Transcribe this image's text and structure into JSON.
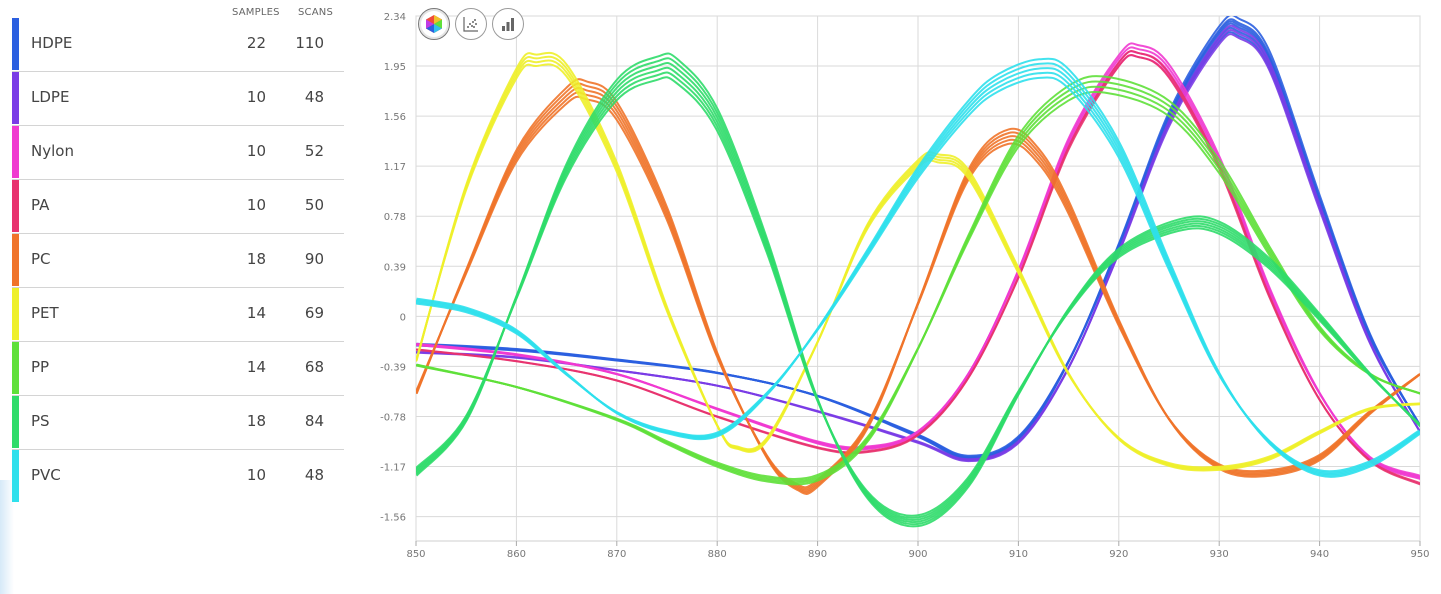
{
  "legend": {
    "headers": {
      "samples": "SAMPLES",
      "scans": "SCANS"
    },
    "rows": [
      {
        "name": "HDPE",
        "samples": "22",
        "scans": "110",
        "color": "#2b5fe0"
      },
      {
        "name": "LDPE",
        "samples": "10",
        "scans": "48",
        "color": "#7a3ce6"
      },
      {
        "name": "Nylon",
        "samples": "10",
        "scans": "52",
        "color": "#f03ad0"
      },
      {
        "name": "PA",
        "samples": "10",
        "scans": "50",
        "color": "#e8326e"
      },
      {
        "name": "PC",
        "samples": "18",
        "scans": "90",
        "color": "#f0742a"
      },
      {
        "name": "PET",
        "samples": "14",
        "scans": "69",
        "color": "#eef02a"
      },
      {
        "name": "PP",
        "samples": "14",
        "scans": "68",
        "color": "#5fe03a"
      },
      {
        "name": "PS",
        "samples": "18",
        "scans": "84",
        "color": "#2fdc6a"
      },
      {
        "name": "PVC",
        "samples": "10",
        "scans": "48",
        "color": "#2fe0ec"
      }
    ]
  },
  "toolbar": {
    "buttons": [
      {
        "name": "spectra-view-button",
        "icon": "hexagon-color-icon",
        "active": true
      },
      {
        "name": "scatter-view-button",
        "icon": "scatter-plot-icon",
        "active": false
      },
      {
        "name": "bar-view-button",
        "icon": "bar-chart-icon",
        "active": false
      }
    ]
  },
  "chart_data": {
    "type": "line",
    "title": "",
    "xlabel": "",
    "ylabel": "",
    "xlim": [
      850,
      950
    ],
    "ylim": [
      -1.75,
      2.34
    ],
    "x_ticks": [
      850,
      860,
      870,
      880,
      890,
      900,
      910,
      920,
      930,
      940,
      950
    ],
    "y_ticks": [
      {
        "value": 2.34,
        "label": "2.34"
      },
      {
        "value": 1.95,
        "label": "1.95"
      },
      {
        "value": 1.56,
        "label": "1.56"
      },
      {
        "value": 1.17,
        "label": "1.17"
      },
      {
        "value": 0.78,
        "label": "0.78"
      },
      {
        "value": 0.39,
        "label": "0.39"
      },
      {
        "value": 0,
        "label": "0"
      },
      {
        "value": -0.39,
        "label": "-0.39"
      },
      {
        "value": -0.78,
        "label": "-0.78"
      },
      {
        "value": -1.17,
        "label": "-1.17"
      },
      {
        "value": -1.56,
        "label": "-1.56"
      }
    ],
    "grid": true,
    "legend": "left",
    "series": [
      {
        "name": "HDPE",
        "color": "#2b5fe0",
        "x": [
          850,
          860,
          870,
          880,
          890,
          900,
          905,
          910,
          915,
          920,
          925,
          930,
          932,
          935,
          940,
          945,
          950
        ],
        "y": [
          -0.22,
          -0.26,
          -0.34,
          -0.44,
          -0.62,
          -0.93,
          -1.1,
          -0.95,
          -0.35,
          0.55,
          1.55,
          2.2,
          2.25,
          2.0,
          0.9,
          -0.15,
          -0.85
        ],
        "offsets": [
          0,
          0.04,
          -0.04,
          0.08,
          -0.08,
          0.02
        ]
      },
      {
        "name": "LDPE",
        "color": "#7a3ce6",
        "x": [
          850,
          860,
          870,
          880,
          890,
          900,
          905,
          910,
          915,
          920,
          925,
          930,
          932,
          935,
          940,
          945,
          950
        ],
        "y": [
          -0.28,
          -0.32,
          -0.42,
          -0.54,
          -0.74,
          -0.98,
          -1.12,
          -0.98,
          -0.4,
          0.5,
          1.5,
          2.15,
          2.2,
          1.95,
          0.85,
          -0.2,
          -0.9
        ],
        "offsets": [
          0,
          0.04,
          -0.04
        ]
      },
      {
        "name": "Nylon",
        "color": "#f03ad0",
        "x": [
          850,
          860,
          870,
          880,
          890,
          895,
          900,
          905,
          910,
          915,
          920,
          922,
          925,
          930,
          935,
          940,
          945,
          950
        ],
        "y": [
          -0.22,
          -0.3,
          -0.45,
          -0.72,
          -0.98,
          -1.02,
          -0.9,
          -0.45,
          0.35,
          1.35,
          1.98,
          2.05,
          1.9,
          1.2,
          0.2,
          -0.6,
          -1.1,
          -1.25
        ],
        "offsets": [
          0,
          0.04,
          -0.04,
          0.08
        ]
      },
      {
        "name": "PA",
        "color": "#e8326e",
        "x": [
          850,
          860,
          870,
          880,
          890,
          895,
          900,
          905,
          910,
          915,
          920,
          922,
          925,
          930,
          935,
          940,
          945,
          950
        ],
        "y": [
          -0.26,
          -0.35,
          -0.5,
          -0.78,
          -1.02,
          -1.05,
          -0.92,
          -0.48,
          0.3,
          1.3,
          1.95,
          2.02,
          1.86,
          1.15,
          0.15,
          -0.65,
          -1.12,
          -1.3
        ],
        "offsets": [
          0,
          0.04
        ]
      },
      {
        "name": "PC",
        "color": "#f0742a",
        "x": [
          850,
          855,
          860,
          865,
          867,
          870,
          875,
          880,
          885,
          888,
          890,
          895,
          900,
          905,
          909,
          912,
          915,
          920,
          925,
          930,
          935,
          940,
          945,
          950
        ],
        "y": [
          -0.6,
          0.35,
          1.25,
          1.72,
          1.76,
          1.6,
          0.8,
          -0.3,
          -1.1,
          -1.33,
          -1.3,
          -0.85,
          0.1,
          1.1,
          1.4,
          1.25,
          0.85,
          -0.05,
          -0.8,
          -1.17,
          -1.22,
          -1.1,
          -0.75,
          -0.45
        ],
        "offsets": [
          0,
          0.05,
          -0.05,
          0.1,
          -0.1
        ]
      },
      {
        "name": "PET",
        "color": "#eef02a",
        "x": [
          850,
          855,
          860,
          862,
          865,
          870,
          875,
          880,
          882,
          885,
          890,
          895,
          900,
          902,
          905,
          910,
          915,
          920,
          925,
          930,
          935,
          940,
          945,
          950
        ],
        "y": [
          -0.35,
          1.0,
          1.88,
          1.98,
          1.9,
          1.15,
          0.05,
          -0.85,
          -1.02,
          -0.95,
          -0.2,
          0.7,
          1.18,
          1.22,
          1.1,
          0.35,
          -0.45,
          -0.95,
          -1.15,
          -1.18,
          -1.1,
          -0.9,
          -0.72,
          -0.68
        ],
        "offsets": [
          0,
          0.04,
          -0.04,
          0.08
        ]
      },
      {
        "name": "PP",
        "color": "#5fe03a",
        "x": [
          850,
          860,
          870,
          875,
          880,
          885,
          890,
          895,
          900,
          905,
          910,
          915,
          919,
          925,
          930,
          935,
          940,
          945,
          950
        ],
        "y": [
          -0.38,
          -0.55,
          -0.8,
          -0.98,
          -1.15,
          -1.26,
          -1.25,
          -0.95,
          -0.25,
          0.6,
          1.35,
          1.72,
          1.78,
          1.6,
          1.15,
          0.5,
          -0.1,
          -0.45,
          -0.6
        ],
        "offsets": [
          0,
          0.06,
          -0.06,
          0.12
        ]
      },
      {
        "name": "PS",
        "color": "#2fdc6a",
        "x": [
          850,
          855,
          860,
          865,
          870,
          874,
          876,
          880,
          885,
          890,
          895,
          900,
          905,
          910,
          915,
          920,
          926,
          930,
          935,
          940,
          945,
          950
        ],
        "y": [
          -1.22,
          -0.8,
          0.15,
          1.15,
          1.78,
          1.95,
          1.93,
          1.55,
          0.55,
          -0.65,
          -1.4,
          -1.6,
          -1.3,
          -0.6,
          0.05,
          0.5,
          0.72,
          0.7,
          0.42,
          0.0,
          -0.45,
          -0.85
        ],
        "offsets": [
          0,
          0.05,
          -0.05,
          0.1,
          -0.1,
          -0.15
        ]
      },
      {
        "name": "PVC",
        "color": "#2fe0ec",
        "x": [
          850,
          855,
          860,
          865,
          870,
          875,
          880,
          885,
          890,
          895,
          900,
          905,
          908,
          912,
          915,
          920,
          925,
          930,
          935,
          940,
          945,
          950
        ],
        "y": [
          0.12,
          0.05,
          -0.12,
          -0.45,
          -0.75,
          -0.9,
          -0.92,
          -0.6,
          -0.1,
          0.5,
          1.12,
          1.62,
          1.82,
          1.93,
          1.85,
          1.3,
          0.4,
          -0.45,
          -0.98,
          -1.22,
          -1.15,
          -0.9
        ],
        "offsets": [
          0,
          0.05,
          -0.05,
          0.1,
          -0.1
        ]
      }
    ]
  }
}
